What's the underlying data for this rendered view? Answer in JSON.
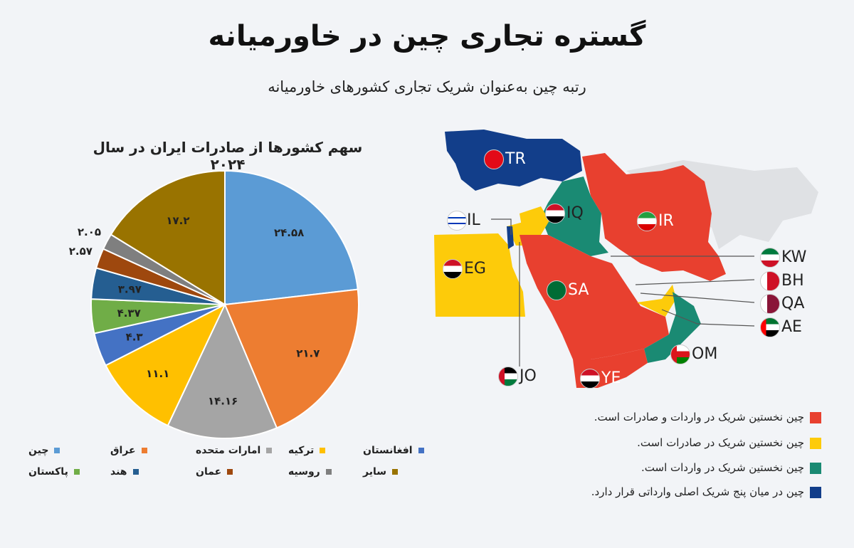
{
  "header": {
    "title": "گستره تجاری چین در خاورمیانه",
    "subtitle": "رتبه چین به‌عنوان شریک تجاری کشورهای خاورمیانه"
  },
  "chart_data": {
    "type": "pie",
    "title": "سهم کشورها از صادرات ایران در سال ۲۰۲۴",
    "slices": [
      {
        "name": "چین",
        "value": 24.58,
        "label": "۲۴.۵۸",
        "color": "#5b9bd5"
      },
      {
        "name": "عراق",
        "value": 21.7,
        "label": "۲۱.۷",
        "color": "#ed7d31"
      },
      {
        "name": "امارات متحده",
        "value": 14.16,
        "label": "۱۴.۱۶",
        "color": "#a5a5a5"
      },
      {
        "name": "ترکیه",
        "value": 11.1,
        "label": "۱۱.۱",
        "color": "#ffc000"
      },
      {
        "name": "افغانستان",
        "value": 4.3,
        "label": "۴.۳",
        "color": "#4472c4"
      },
      {
        "name": "پاکستان",
        "value": 4.37,
        "label": "۴.۳۷",
        "color": "#70ad47"
      },
      {
        "name": "هند",
        "value": 3.97,
        "label": "۳.۹۷",
        "color": "#255e91"
      },
      {
        "name": "عمان",
        "value": 2.57,
        "label": "۲.۵۷",
        "color": "#9e480e"
      },
      {
        "name": "روسیه",
        "value": 2.05,
        "label": "۲.۰۵",
        "color": "#7f7f7f"
      },
      {
        "name": "سایر",
        "value": 17.2,
        "label": "۱۷.۲",
        "color": "#997300"
      }
    ]
  },
  "legend_items": [
    {
      "name": "چین",
      "color": "#5b9bd5"
    },
    {
      "name": "عراق",
      "color": "#ed7d31"
    },
    {
      "name": "امارات متحده",
      "color": "#a5a5a5"
    },
    {
      "name": "ترکیه",
      "color": "#ffc000"
    },
    {
      "name": "افغانستان",
      "color": "#4472c4"
    },
    {
      "name": "پاکستان",
      "color": "#70ad47"
    },
    {
      "name": "هند",
      "color": "#255e91"
    },
    {
      "name": "عمان",
      "color": "#9e480e"
    },
    {
      "name": "روسیه",
      "color": "#7f7f7f"
    },
    {
      "name": "سایر",
      "color": "#997300"
    }
  ],
  "map": {
    "countries": {
      "TR": "TR",
      "IQ": "IQ",
      "IR": "IR",
      "IL": "IL",
      "EG": "EG",
      "SA": "SA",
      "KW": "KW",
      "BH": "BH",
      "QA": "QA",
      "AE": "AE",
      "OM": "OM",
      "YE": "YE",
      "JO": "JO"
    },
    "colors": {
      "red": "#e8402f",
      "yellow": "#fdcb0a",
      "teal": "#1a8a73",
      "blue": "#123e8a",
      "gray": "#d8dadd"
    },
    "legend": [
      {
        "text": "چین نخستین شریک در واردات و صادرات است.",
        "color": "#e8402f"
      },
      {
        "text": "چین نخستین شریک در صادرات است.",
        "color": "#fdcb0a"
      },
      {
        "text": "چین نخستین شریک در واردات است.",
        "color": "#1a8a73"
      },
      {
        "text": "چین در میان پنج شریک اصلی وارداتی قرار دارد.",
        "color": "#123e8a"
      }
    ]
  }
}
